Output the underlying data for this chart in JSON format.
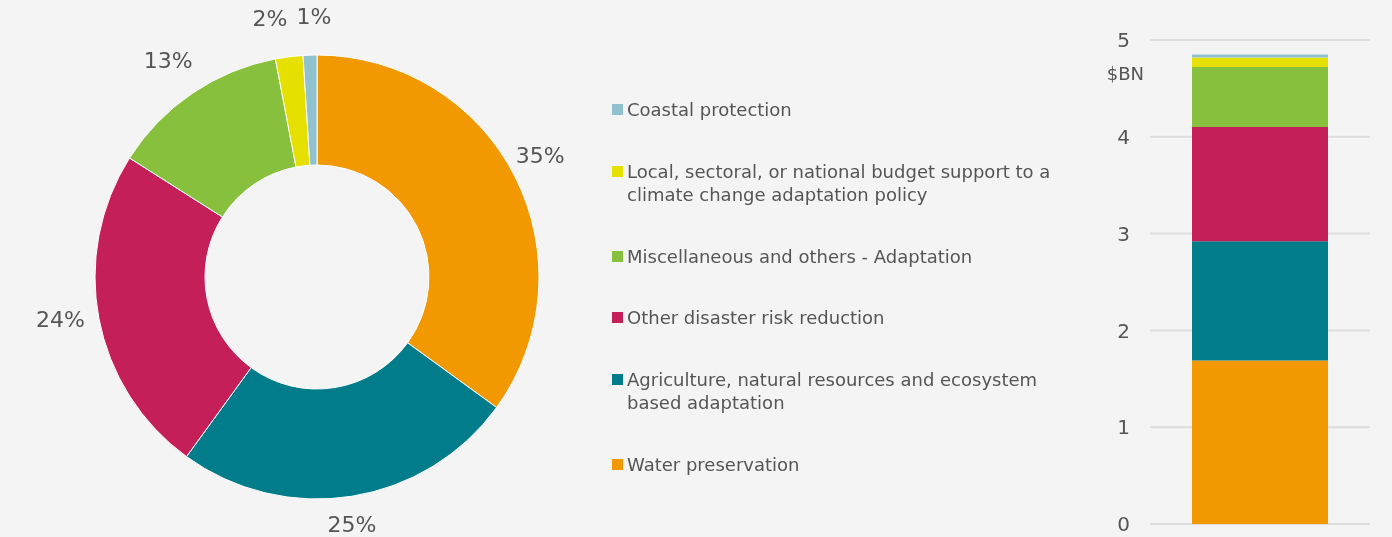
{
  "chart_data": [
    {
      "type": "donut",
      "categories": [
        "Water preservation",
        "Agriculture, natural resources and ecosystem based adaptation",
        "Other disaster risk reduction",
        "Miscellaneous and others - Adaptation",
        "Local, sectoral, or national budget support to a climate change adaptation policy",
        "Coastal protection"
      ],
      "values": [
        35,
        25,
        24,
        13,
        2,
        1
      ],
      "colors": [
        "#f29800",
        "#007c8a",
        "#c51f5a",
        "#86c03c",
        "#e5e000",
        "#8fc1cf"
      ],
      "value_labels": [
        "35%",
        "25%",
        "24%",
        "13%",
        "2%",
        "1%"
      ],
      "legend": "right"
    },
    {
      "type": "bar",
      "stacked": true,
      "categories": [
        null
      ],
      "ylabel": "$BN",
      "ylim": [
        0,
        5
      ],
      "yticks": [
        0,
        1,
        2,
        3,
        4,
        5
      ],
      "grid": "y",
      "series": [
        {
          "color": "#f29800",
          "values": [
            1.69
          ]
        },
        {
          "color": "#007c8a",
          "values": [
            1.23
          ]
        },
        {
          "color": "#c51f5a",
          "values": [
            1.18
          ]
        },
        {
          "color": "#86c03c",
          "values": [
            0.62
          ]
        },
        {
          "color": "#e5e000",
          "values": [
            0.1
          ]
        },
        {
          "color": "#8fc1cf",
          "values": [
            0.03
          ]
        }
      ]
    }
  ]
}
